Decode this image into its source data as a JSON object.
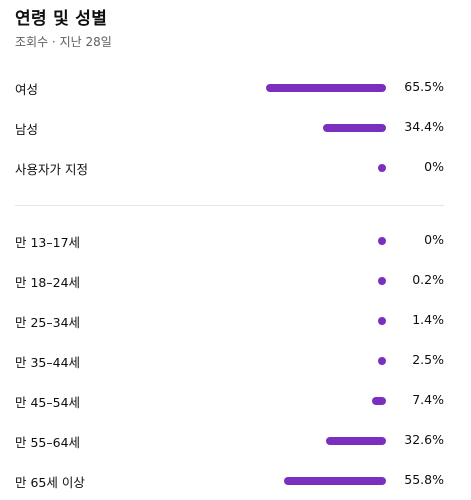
{
  "header": {
    "title": "연령 및 성별",
    "subtitle": "조회수 · 지난 28일"
  },
  "colors": {
    "bar": "#7b2fbf",
    "divider": "#e5e5e5",
    "subtext": "#606060"
  },
  "gender": [
    {
      "label": "여성",
      "value_text": "65.5%",
      "percent": 65.5
    },
    {
      "label": "남성",
      "value_text": "34.4%",
      "percent": 34.4
    },
    {
      "label": "사용자가 지정",
      "value_text": "0%",
      "percent": 0
    }
  ],
  "age": [
    {
      "label": "만 13–17세",
      "value_text": "0%",
      "percent": 0
    },
    {
      "label": "만 18–24세",
      "value_text": "0.2%",
      "percent": 0.2
    },
    {
      "label": "만 25–34세",
      "value_text": "1.4%",
      "percent": 1.4
    },
    {
      "label": "만 35–44세",
      "value_text": "2.5%",
      "percent": 2.5
    },
    {
      "label": "만 45–54세",
      "value_text": "7.4%",
      "percent": 7.4
    },
    {
      "label": "만 55–64세",
      "value_text": "32.6%",
      "percent": 32.6
    },
    {
      "label": "만 65세 이상",
      "value_text": "55.8%",
      "percent": 55.8
    }
  ]
}
